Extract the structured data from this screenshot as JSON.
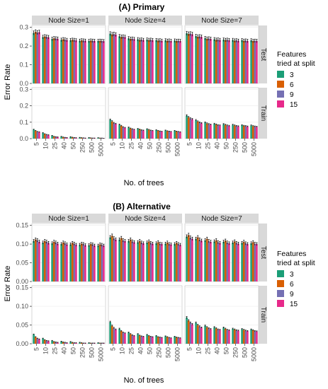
{
  "chart_data": [
    {
      "type": "bar",
      "title": "(A) Primary",
      "xlabel": "No. of trees",
      "ylabel": "Error Rate",
      "categories": [
        "5",
        "10",
        "25",
        "40",
        "50",
        "250",
        "500",
        "5000"
      ],
      "x_tick_order": [
        "5",
        "10",
        "25",
        "40",
        "50",
        "250",
        "500",
        "5000"
      ],
      "y_ticks": [
        "0.0",
        "0.1",
        "0.2",
        "0.3"
      ],
      "ylim": [
        0,
        0.31
      ],
      "y_tick_values": [
        0,
        0.1,
        0.2,
        0.3
      ],
      "facet_cols": [
        "Node Size=1",
        "Node Size=4",
        "Node Size=7"
      ],
      "facet_rows": [
        "Test",
        "Train"
      ],
      "legend": {
        "title_line1": "Features",
        "title_line2": "tried at split",
        "entries": [
          "3",
          "6",
          "9",
          "15"
        ]
      },
      "colors": [
        "#1b9e77",
        "#d95f02",
        "#7570b3",
        "#e7298a"
      ],
      "errorbars": true,
      "data": {
        "Test": {
          "Node Size=1": [
            [
              0.27,
              0.276,
              0.272,
              0.274
            ],
            [
              0.248,
              0.251,
              0.249,
              0.247
            ],
            [
              0.238,
              0.241,
              0.24,
              0.239
            ],
            [
              0.233,
              0.236,
              0.234,
              0.232
            ],
            [
              0.231,
              0.233,
              0.232,
              0.23
            ],
            [
              0.228,
              0.23,
              0.229,
              0.228
            ],
            [
              0.227,
              0.229,
              0.228,
              0.227
            ],
            [
              0.227,
              0.228,
              0.227,
              0.226
            ]
          ],
          "Node Size=4": [
            [
              0.266,
              0.262,
              0.264,
              0.261
            ],
            [
              0.252,
              0.249,
              0.25,
              0.248
            ],
            [
              0.241,
              0.238,
              0.239,
              0.237
            ],
            [
              0.236,
              0.233,
              0.234,
              0.232
            ],
            [
              0.234,
              0.232,
              0.233,
              0.231
            ],
            [
              0.231,
              0.229,
              0.23,
              0.228
            ],
            [
              0.23,
              0.228,
              0.229,
              0.227
            ],
            [
              0.229,
              0.227,
              0.228,
              0.227
            ]
          ],
          "Node Size=7": [
            [
              0.268,
              0.265,
              0.266,
              0.263
            ],
            [
              0.253,
              0.25,
              0.251,
              0.249
            ],
            [
              0.242,
              0.239,
              0.24,
              0.238
            ],
            [
              0.236,
              0.233,
              0.234,
              0.232
            ],
            [
              0.234,
              0.232,
              0.233,
              0.231
            ],
            [
              0.232,
              0.229,
              0.23,
              0.228
            ],
            [
              0.231,
              0.228,
              0.229,
              0.227
            ],
            [
              0.23,
              0.227,
              0.228,
              0.227
            ]
          ]
        },
        "Train": {
          "Node Size=1": [
            [
              0.055,
              0.048,
              0.042,
              0.04
            ],
            [
              0.035,
              0.028,
              0.024,
              0.022
            ],
            [
              0.018,
              0.012,
              0.01,
              0.009
            ],
            [
              0.012,
              0.008,
              0.006,
              0.005
            ],
            [
              0.01,
              0.007,
              0.005,
              0.004
            ],
            [
              0.006,
              0.004,
              0.003,
              0.002
            ],
            [
              0.005,
              0.003,
              0.002,
              0.002
            ],
            [
              0.004,
              0.002,
              0.002,
              0.001
            ]
          ],
          "Node Size=4": [
            [
              0.115,
              0.105,
              0.095,
              0.09
            ],
            [
              0.085,
              0.078,
              0.07,
              0.066
            ],
            [
              0.068,
              0.062,
              0.058,
              0.055
            ],
            [
              0.06,
              0.056,
              0.052,
              0.05
            ],
            [
              0.058,
              0.054,
              0.05,
              0.048
            ],
            [
              0.052,
              0.048,
              0.045,
              0.043
            ],
            [
              0.05,
              0.046,
              0.044,
              0.042
            ],
            [
              0.048,
              0.044,
              0.042,
              0.04
            ]
          ],
          "Node Size=7": [
            [
              0.14,
              0.13,
              0.122,
              0.118
            ],
            [
              0.112,
              0.104,
              0.098,
              0.094
            ],
            [
              0.098,
              0.092,
              0.088,
              0.085
            ],
            [
              0.09,
              0.086,
              0.082,
              0.08
            ],
            [
              0.088,
              0.084,
              0.08,
              0.078
            ],
            [
              0.084,
              0.08,
              0.077,
              0.075
            ],
            [
              0.082,
              0.078,
              0.076,
              0.074
            ],
            [
              0.08,
              0.076,
              0.074,
              0.072
            ]
          ]
        }
      }
    },
    {
      "type": "bar",
      "title": "(B) Alternative",
      "xlabel": "No. of trees",
      "ylabel": "Error Rate",
      "categories": [
        "5",
        "10",
        "25",
        "40",
        "50",
        "250",
        "500",
        "5000"
      ],
      "x_tick_order": [
        "5",
        "10",
        "25",
        "40",
        "50",
        "250",
        "500",
        "5000"
      ],
      "y_ticks": [
        "0.00",
        "0.05",
        "0.10",
        "0.15"
      ],
      "ylim": [
        0,
        0.155
      ],
      "y_tick_values": [
        0,
        0.05,
        0.1,
        0.15
      ],
      "facet_cols": [
        "Node Size=1",
        "Node Size=4",
        "Node Size=7"
      ],
      "facet_rows": [
        "Test",
        "Train"
      ],
      "legend": {
        "title_line1": "Features",
        "title_line2": "tried at split",
        "entries": [
          "3",
          "6",
          "9",
          "15"
        ]
      },
      "colors": [
        "#1b9e77",
        "#d95f02",
        "#7570b3",
        "#e7298a"
      ],
      "errorbars": true,
      "data": {
        "Test": {
          "Node Size=1": [
            [
              0.108,
              0.112,
              0.11,
              0.106
            ],
            [
              0.104,
              0.108,
              0.106,
              0.103
            ],
            [
              0.102,
              0.106,
              0.104,
              0.101
            ],
            [
              0.1,
              0.104,
              0.102,
              0.099
            ],
            [
              0.099,
              0.103,
              0.101,
              0.098
            ],
            [
              0.098,
              0.101,
              0.1,
              0.097
            ],
            [
              0.097,
              0.1,
              0.099,
              0.096
            ],
            [
              0.096,
              0.099,
              0.098,
              0.096
            ]
          ],
          "Node Size=4": [
            [
              0.118,
              0.122,
              0.115,
              0.112
            ],
            [
              0.112,
              0.116,
              0.11,
              0.108
            ],
            [
              0.108,
              0.112,
              0.107,
              0.105
            ],
            [
              0.105,
              0.108,
              0.104,
              0.102
            ],
            [
              0.104,
              0.107,
              0.103,
              0.101
            ],
            [
              0.102,
              0.105,
              0.101,
              0.1
            ],
            [
              0.101,
              0.104,
              0.1,
              0.099
            ],
            [
              0.1,
              0.103,
              0.1,
              0.098
            ]
          ],
          "Node Size=7": [
            [
              0.12,
              0.124,
              0.117,
              0.114
            ],
            [
              0.114,
              0.118,
              0.112,
              0.109
            ],
            [
              0.11,
              0.114,
              0.108,
              0.106
            ],
            [
              0.107,
              0.11,
              0.105,
              0.103
            ],
            [
              0.106,
              0.109,
              0.104,
              0.102
            ],
            [
              0.104,
              0.107,
              0.103,
              0.101
            ],
            [
              0.103,
              0.106,
              0.102,
              0.1
            ],
            [
              0.102,
              0.105,
              0.101,
              0.1
            ]
          ]
        },
        "Train": {
          "Node Size=1": [
            [
              0.025,
              0.018,
              0.014,
              0.012
            ],
            [
              0.014,
              0.01,
              0.008,
              0.007
            ],
            [
              0.008,
              0.005,
              0.004,
              0.003
            ],
            [
              0.006,
              0.004,
              0.003,
              0.002
            ],
            [
              0.005,
              0.003,
              0.002,
              0.002
            ],
            [
              0.003,
              0.002,
              0.001,
              0.001
            ],
            [
              0.002,
              0.001,
              0.001,
              0.001
            ],
            [
              0.002,
              0.001,
              0.001,
              0.001
            ]
          ],
          "Node Size=4": [
            [
              0.058,
              0.048,
              0.042,
              0.038
            ],
            [
              0.04,
              0.034,
              0.03,
              0.028
            ],
            [
              0.03,
              0.026,
              0.023,
              0.021
            ],
            [
              0.026,
              0.022,
              0.02,
              0.019
            ],
            [
              0.024,
              0.021,
              0.019,
              0.018
            ],
            [
              0.021,
              0.018,
              0.017,
              0.016
            ],
            [
              0.02,
              0.018,
              0.016,
              0.015
            ],
            [
              0.019,
              0.017,
              0.016,
              0.015
            ]
          ],
          "Node Size=7": [
            [
              0.07,
              0.062,
              0.056,
              0.052
            ],
            [
              0.056,
              0.05,
              0.046,
              0.043
            ],
            [
              0.048,
              0.044,
              0.041,
              0.039
            ],
            [
              0.044,
              0.041,
              0.038,
              0.037
            ],
            [
              0.043,
              0.04,
              0.037,
              0.036
            ],
            [
              0.04,
              0.038,
              0.036,
              0.035
            ],
            [
              0.039,
              0.037,
              0.035,
              0.034
            ],
            [
              0.038,
              0.036,
              0.034,
              0.033
            ]
          ]
        }
      }
    }
  ]
}
